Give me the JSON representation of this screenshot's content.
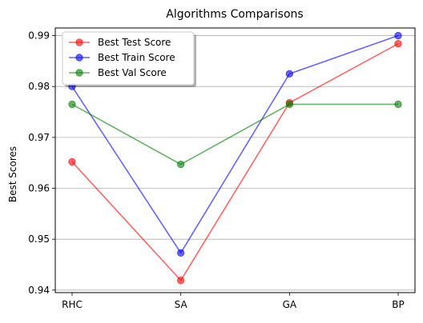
{
  "chart_data": {
    "type": "line",
    "title": "Algorithms Comparisons",
    "xlabel": "",
    "ylabel": "Best Scores",
    "categories": [
      "RHC",
      "SA",
      "GA",
      "BP"
    ],
    "ylim": [
      0.9395,
      0.9915
    ],
    "yticks": [
      0.94,
      0.95,
      0.96,
      0.97,
      0.98,
      0.99
    ],
    "ytick_labels": [
      "0.94",
      "0.95",
      "0.96",
      "0.97",
      "0.98",
      "0.99"
    ],
    "grid": "horizontal",
    "legend_position": "top-left",
    "series": [
      {
        "name": "Best Test Score",
        "color": "#ff0000",
        "values": [
          0.9652,
          0.9419,
          0.9768,
          0.9884
        ]
      },
      {
        "name": "Best Train Score",
        "color": "#0000ff",
        "values": [
          0.98,
          0.9473,
          0.9825,
          0.99
        ]
      },
      {
        "name": "Best Val Score",
        "color": "#008000",
        "values": [
          0.9765,
          0.9647,
          0.9765,
          0.9765
        ]
      }
    ]
  }
}
